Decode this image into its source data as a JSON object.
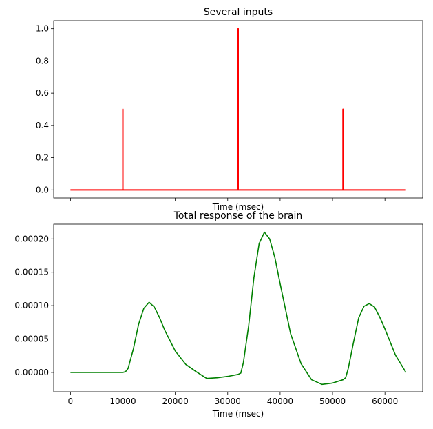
{
  "chart_data": [
    {
      "type": "line",
      "title": "Several inputs",
      "xlabel": "Time (msec)",
      "ylabel": "",
      "xlim": [
        -3200,
        67200
      ],
      "ylim": [
        -0.05,
        1.05
      ],
      "yticks": [
        0.0,
        0.2,
        0.4,
        0.6,
        0.8,
        1.0
      ],
      "ytick_labels": [
        "0.0",
        "0.2",
        "0.4",
        "0.6",
        "0.8",
        "1.0"
      ],
      "xticks": [
        0,
        10000,
        20000,
        30000,
        40000,
        50000,
        60000
      ],
      "xtick_labels_visible": false,
      "grid": false,
      "series": [
        {
          "color": "#ff0000",
          "x": [
            0,
            10000,
            10000,
            10000,
            32000,
            32000,
            32000,
            52000,
            52000,
            52000,
            64000
          ],
          "y": [
            0,
            0,
            0.5,
            0,
            0,
            1.0,
            0,
            0,
            0.5,
            0,
            0
          ]
        }
      ]
    },
    {
      "type": "line",
      "title": "Total response of the brain",
      "xlabel": "Time (msec)",
      "ylabel": "",
      "xlim": [
        -3200,
        67200
      ],
      "ylim": [
        -2.9e-05,
        0.000222
      ],
      "yticks": [
        0.0,
        5e-05,
        0.0001,
        0.00015,
        0.0002
      ],
      "ytick_labels": [
        "0.00000",
        "0.00005",
        "0.00010",
        "0.00015",
        "0.00020"
      ],
      "xticks": [
        0,
        10000,
        20000,
        30000,
        40000,
        50000,
        60000
      ],
      "xtick_labels": [
        "0",
        "10000",
        "20000",
        "30000",
        "40000",
        "50000",
        "60000"
      ],
      "grid": false,
      "series": [
        {
          "color": "#008000",
          "x": [
            0,
            10000,
            10500,
            11000,
            12000,
            13000,
            14000,
            15000,
            16000,
            17000,
            18000,
            20000,
            22000,
            24000,
            26000,
            28000,
            30000,
            32000,
            32500,
            33000,
            34000,
            35000,
            36000,
            37000,
            38000,
            39000,
            40000,
            42000,
            44000,
            46000,
            48000,
            50000,
            52000,
            52500,
            53000,
            54000,
            55000,
            56000,
            57000,
            58000,
            59000,
            60000,
            62000,
            64000
          ],
          "y": [
            0,
            0,
            1e-06,
            6e-06,
            3.5e-05,
            7.2e-05,
            9.6e-05,
            0.000105,
            9.8e-05,
            8.2e-05,
            6.3e-05,
            3.2e-05,
            1.2e-05,
            1e-06,
            -9e-06,
            -8e-06,
            -6e-06,
            -3e-06,
            -1e-06,
            1.5e-05,
            7e-05,
            0.000142,
            0.000193,
            0.00021,
            0.0002,
            0.000172,
            0.000133,
            5.8e-05,
            1.3e-05,
            -1.1e-05,
            -1.8e-05,
            -1.6e-05,
            -1.1e-05,
            -8e-06,
            6e-06,
            4.5e-05,
            8.2e-05,
            9.9e-05,
            0.000103,
            9.8e-05,
            8.3e-05,
            6.5e-05,
            2.6e-05,
            0.0
          ]
        }
      ]
    }
  ]
}
